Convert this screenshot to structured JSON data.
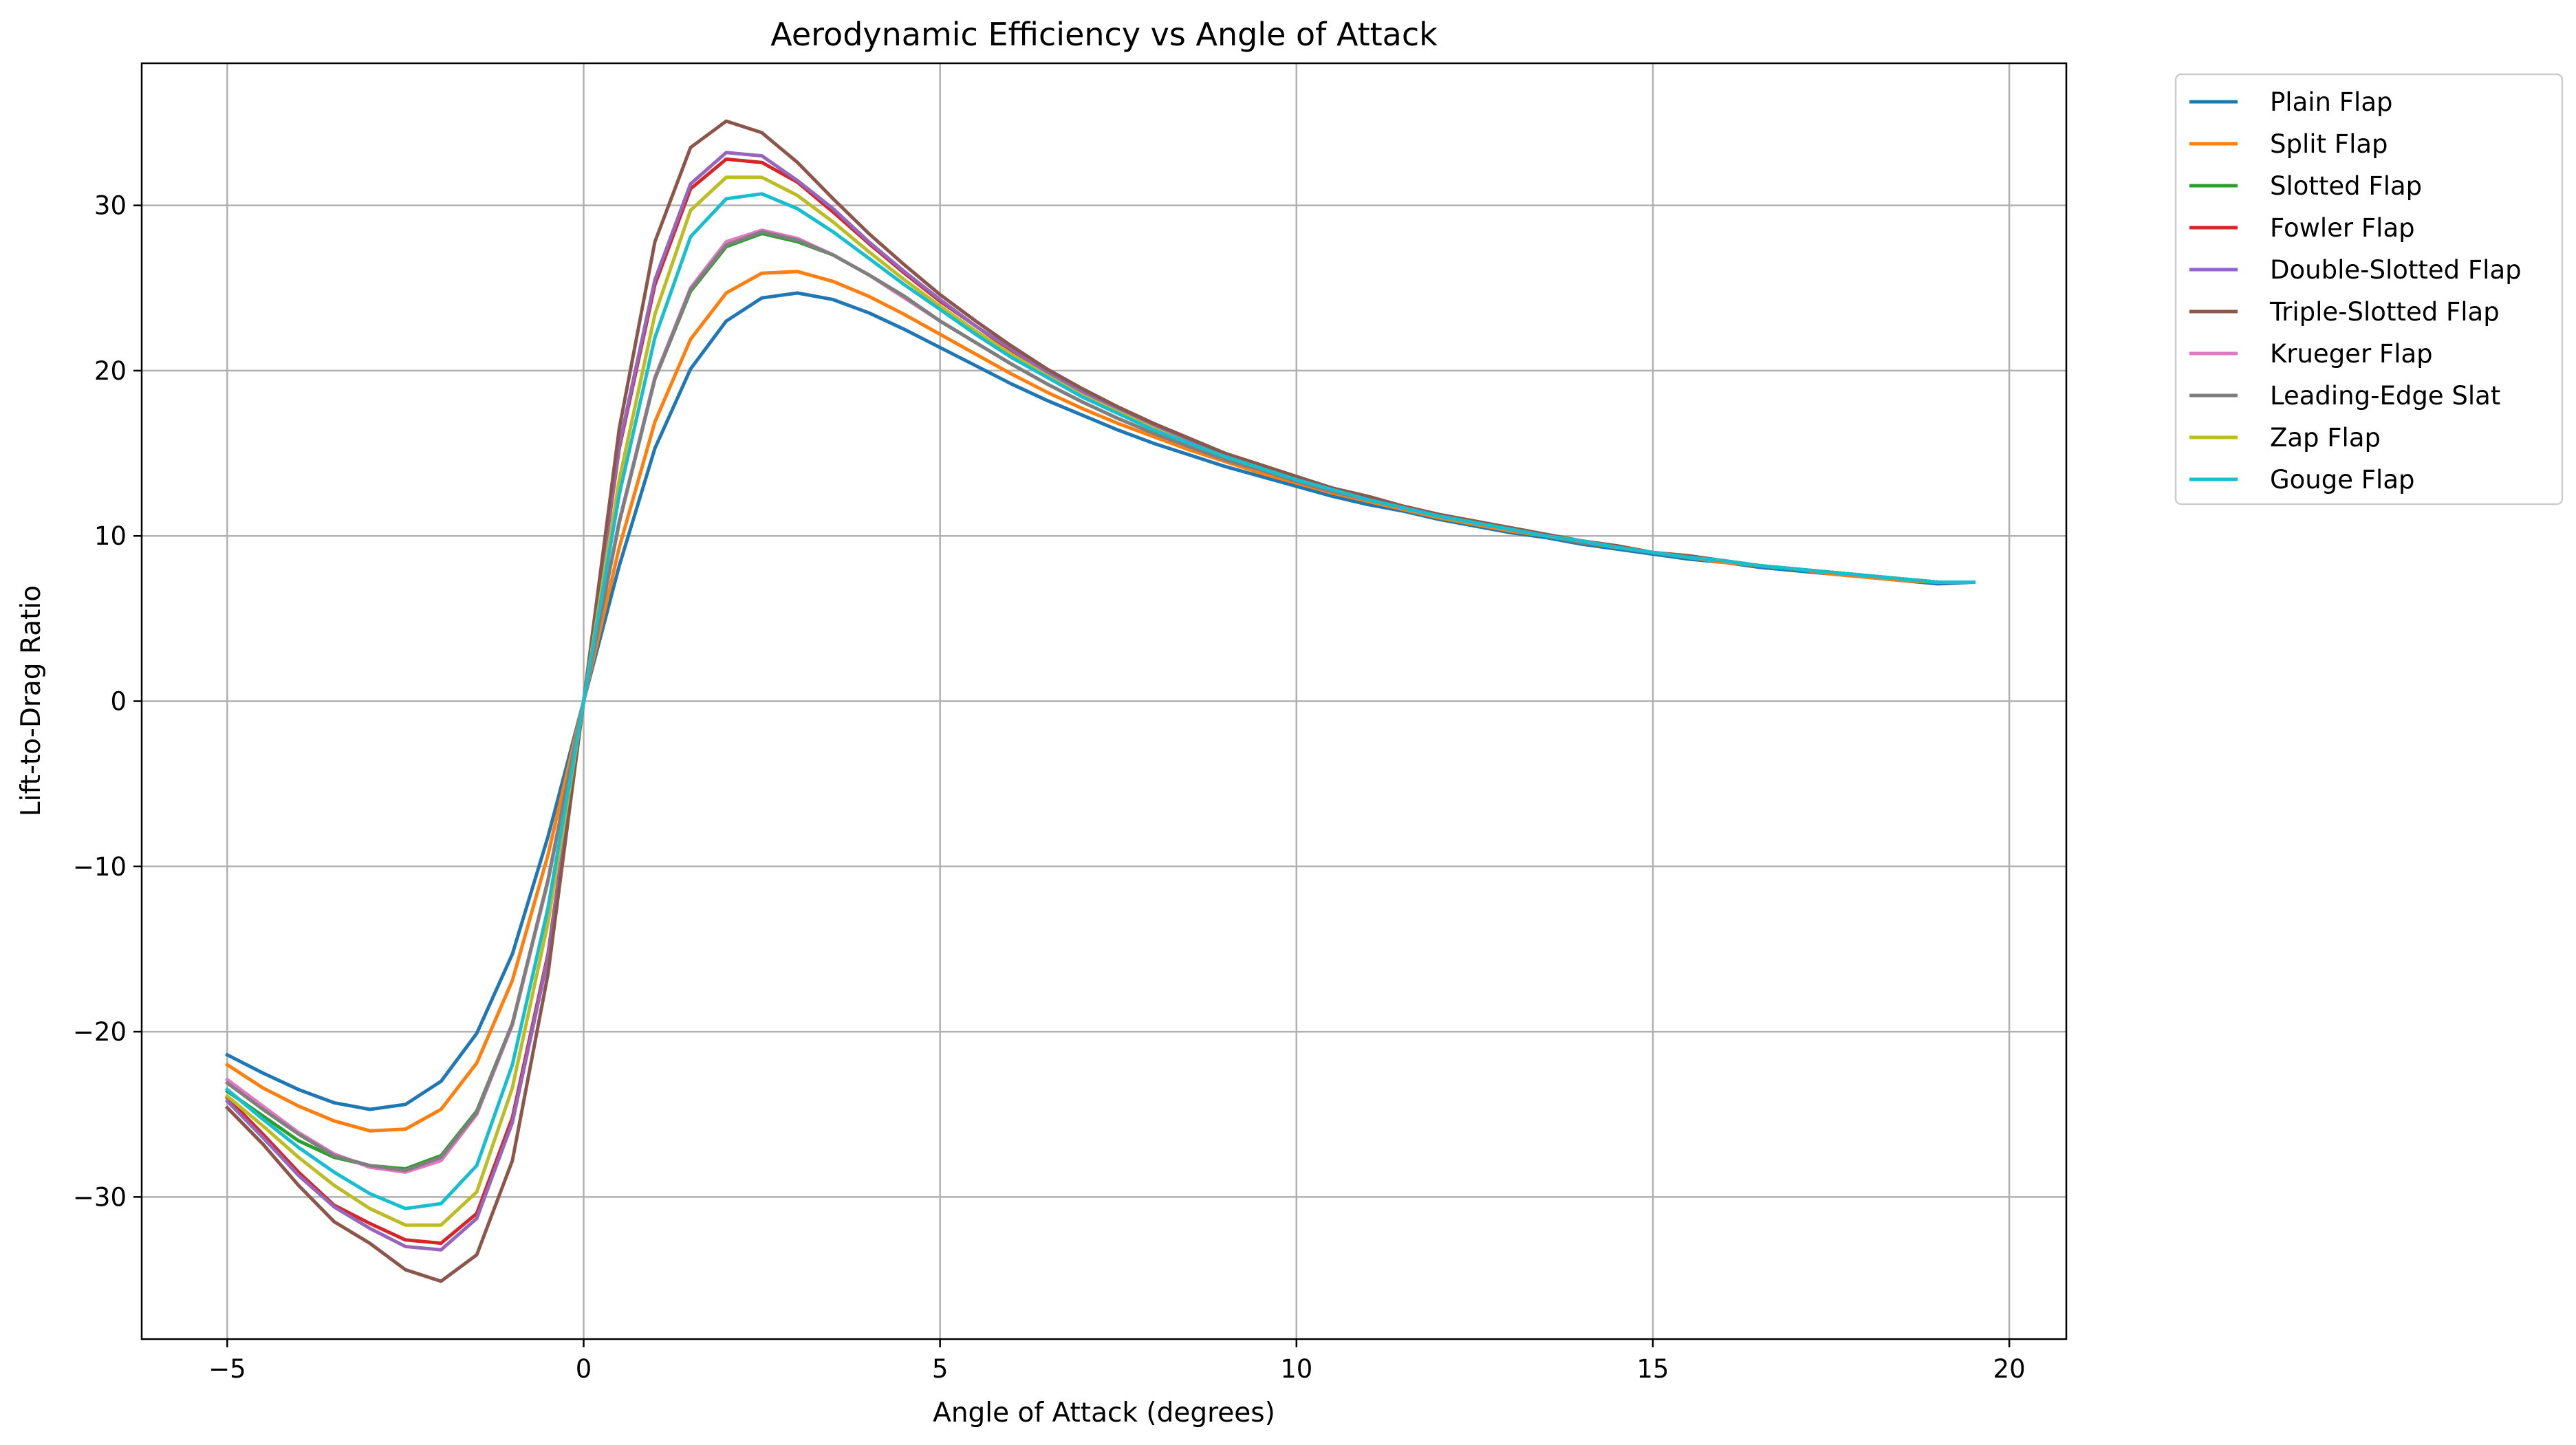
{
  "chart_data": {
    "type": "line",
    "title": "Aerodynamic Efficiency vs Angle of Attack",
    "xlabel": "Angle of Attack (degrees)",
    "ylabel": "Lift-to-Drag Ratio",
    "xlim": [
      -6.2,
      20.8
    ],
    "ylim": [
      -38.6,
      38.6
    ],
    "xticks": [
      -5,
      0,
      5,
      10,
      15,
      20
    ],
    "xtick_labels": [
      "−5",
      "0",
      "5",
      "10",
      "15",
      "20"
    ],
    "yticks": [
      -30,
      -20,
      -10,
      0,
      10,
      20,
      30
    ],
    "ytick_labels": [
      "−30",
      "−20",
      "−10",
      "0",
      "10",
      "20",
      "30"
    ],
    "grid": true,
    "legend_position": "outside-top-right",
    "x": [
      -5.0,
      -4.5,
      -4.0,
      -3.5,
      -3.0,
      -2.5,
      -2.0,
      -1.5,
      -1.0,
      -0.5,
      0.0,
      0.5,
      1.0,
      1.5,
      2.0,
      2.5,
      3.0,
      3.5,
      4.0,
      4.5,
      5.0,
      5.5,
      6.0,
      6.5,
      7.0,
      7.5,
      8.0,
      8.5,
      9.0,
      9.5,
      10.0,
      10.5,
      11.0,
      11.5,
      12.0,
      12.5,
      13.0,
      13.5,
      14.0,
      14.5,
      15.0,
      15.5,
      16.0,
      16.5,
      17.0,
      17.5,
      18.0,
      18.5,
      19.0,
      19.5
    ],
    "series": [
      {
        "name": "Plain Flap",
        "color": "#1f77b4",
        "values": [
          -21.4,
          -22.5,
          -23.5,
          -24.3,
          -24.7,
          -24.4,
          -23.0,
          -20.1,
          -15.3,
          -8.2,
          0.0,
          8.2,
          15.3,
          20.1,
          23.0,
          24.4,
          24.7,
          24.3,
          23.5,
          22.5,
          21.4,
          20.3,
          19.2,
          18.2,
          17.3,
          16.4,
          15.6,
          14.9,
          14.2,
          13.6,
          13.0,
          12.4,
          11.9,
          11.5,
          11.0,
          10.6,
          10.2,
          9.9,
          9.5,
          9.2,
          8.9,
          8.6,
          8.4,
          8.1,
          7.9,
          7.7,
          7.5,
          7.3,
          7.1,
          7.2
        ]
      },
      {
        "name": "Split Flap",
        "color": "#ff7f0e",
        "values": [
          -22.0,
          -23.4,
          -24.5,
          -25.4,
          -26.0,
          -25.9,
          -24.7,
          -21.9,
          -16.9,
          -9.3,
          0.0,
          9.3,
          16.9,
          21.9,
          24.7,
          25.9,
          26.0,
          25.4,
          24.5,
          23.4,
          22.2,
          21.0,
          19.8,
          18.7,
          17.7,
          16.8,
          16.0,
          15.2,
          14.5,
          13.8,
          13.2,
          12.6,
          12.1,
          11.6,
          11.1,
          10.7,
          10.3,
          10.0,
          9.6,
          9.3,
          9.0,
          8.7,
          8.4,
          8.2,
          8.0,
          7.7,
          7.5,
          7.3,
          7.2,
          7.2
        ]
      },
      {
        "name": "Slotted Flap",
        "color": "#2ca02c",
        "values": [
          -23.6,
          -25.1,
          -26.6,
          -27.6,
          -28.1,
          -28.3,
          -27.5,
          -24.8,
          -19.5,
          -10.9,
          0.0,
          10.9,
          19.5,
          24.8,
          27.5,
          28.3,
          27.8,
          27.0,
          25.8,
          24.5,
          23.0,
          21.7,
          20.4,
          19.2,
          18.1,
          17.1,
          16.2,
          15.4,
          14.6,
          14.0,
          13.3,
          12.7,
          12.2,
          11.7,
          11.2,
          10.8,
          10.4,
          10.0,
          9.6,
          9.3,
          9.0,
          8.7,
          8.5,
          8.2,
          8.0,
          7.8,
          7.6,
          7.4,
          7.2,
          7.2
        ]
      },
      {
        "name": "Fowler Flap",
        "color": "#d62728",
        "values": [
          -24.0,
          -26.2,
          -28.5,
          -30.5,
          -31.6,
          -32.6,
          -32.8,
          -31.0,
          -25.2,
          -15.3,
          0.0,
          15.3,
          25.2,
          31.0,
          32.8,
          32.6,
          31.4,
          29.6,
          27.7,
          25.9,
          24.2,
          22.7,
          21.2,
          19.9,
          18.7,
          17.6,
          16.6,
          15.7,
          14.9,
          14.2,
          13.5,
          12.9,
          12.3,
          11.8,
          11.3,
          10.8,
          10.4,
          10.0,
          9.7,
          9.3,
          9.0,
          8.7,
          8.5,
          8.2,
          8.0,
          7.8,
          7.6,
          7.4,
          7.2,
          7.2
        ]
      },
      {
        "name": "Double-Slotted Flap",
        "color": "#9467bd",
        "values": [
          -24.2,
          -26.4,
          -28.7,
          -30.6,
          -31.9,
          -33.0,
          -33.2,
          -31.3,
          -25.5,
          -15.5,
          0.0,
          15.5,
          25.5,
          31.3,
          33.2,
          33.0,
          31.5,
          29.8,
          27.8,
          26.0,
          24.3,
          22.7,
          21.3,
          19.9,
          18.7,
          17.6,
          16.6,
          15.7,
          14.9,
          14.2,
          13.5,
          12.9,
          12.3,
          11.8,
          11.3,
          10.8,
          10.4,
          10.0,
          9.7,
          9.3,
          9.0,
          8.7,
          8.5,
          8.2,
          8.0,
          7.8,
          7.6,
          7.4,
          7.2,
          7.2
        ]
      },
      {
        "name": "Triple-Slotted Flap",
        "color": "#8c564b",
        "values": [
          -24.6,
          -26.8,
          -29.3,
          -31.5,
          -32.8,
          -34.4,
          -35.1,
          -33.5,
          -27.8,
          -16.5,
          0.0,
          16.5,
          27.8,
          33.5,
          35.1,
          34.4,
          32.6,
          30.4,
          28.3,
          26.4,
          24.6,
          23.0,
          21.5,
          20.1,
          18.9,
          17.8,
          16.8,
          15.9,
          15.0,
          14.3,
          13.6,
          12.9,
          12.4,
          11.8,
          11.3,
          10.9,
          10.5,
          10.1,
          9.7,
          9.4,
          9.0,
          8.8,
          8.5,
          8.2,
          8.0,
          7.8,
          7.6,
          7.4,
          7.2,
          7.2
        ]
      },
      {
        "name": "Krueger Flap",
        "color": "#e377c2",
        "values": [
          -22.9,
          -24.5,
          -26.1,
          -27.4,
          -28.2,
          -28.5,
          -27.8,
          -25.0,
          -19.6,
          -10.9,
          0.0,
          10.9,
          19.6,
          25.0,
          27.8,
          28.5,
          28.0,
          27.0,
          25.8,
          24.4,
          23.0,
          21.7,
          20.4,
          19.2,
          18.1,
          17.1,
          16.2,
          15.4,
          14.6,
          14.0,
          13.3,
          12.7,
          12.2,
          11.7,
          11.2,
          10.8,
          10.4,
          10.0,
          9.6,
          9.3,
          9.0,
          8.7,
          8.5,
          8.2,
          8.0,
          7.8,
          7.6,
          7.4,
          7.2,
          7.2
        ]
      },
      {
        "name": "Leading-Edge Slat",
        "color": "#7f7f7f",
        "values": [
          -23.1,
          -24.7,
          -26.2,
          -27.5,
          -28.1,
          -28.4,
          -27.6,
          -24.9,
          -19.5,
          -10.8,
          0.0,
          10.8,
          19.5,
          24.9,
          27.6,
          28.4,
          27.9,
          27.0,
          25.8,
          24.5,
          23.0,
          21.7,
          20.4,
          19.2,
          18.1,
          17.1,
          16.2,
          15.4,
          14.6,
          14.0,
          13.3,
          12.7,
          12.2,
          11.7,
          11.2,
          10.8,
          10.4,
          10.0,
          9.6,
          9.3,
          9.0,
          8.7,
          8.5,
          8.2,
          8.0,
          7.8,
          7.6,
          7.4,
          7.2,
          7.2
        ]
      },
      {
        "name": "Zap Flap",
        "color": "#bcbd22",
        "values": [
          -23.9,
          -25.7,
          -27.6,
          -29.3,
          -30.7,
          -31.7,
          -31.7,
          -29.7,
          -23.4,
          -13.4,
          0.0,
          13.4,
          23.4,
          29.7,
          31.7,
          31.7,
          30.6,
          29.0,
          27.2,
          25.5,
          23.9,
          22.4,
          21.0,
          19.7,
          18.5,
          17.5,
          16.5,
          15.6,
          14.8,
          14.1,
          13.4,
          12.8,
          12.2,
          11.7,
          11.2,
          10.8,
          10.4,
          10.0,
          9.7,
          9.3,
          9.0,
          8.7,
          8.5,
          8.2,
          8.0,
          7.8,
          7.6,
          7.4,
          7.2,
          7.2
        ]
      },
      {
        "name": "Gouge Flap",
        "color": "#17becf",
        "values": [
          -23.5,
          -25.3,
          -27.0,
          -28.5,
          -29.8,
          -30.7,
          -30.4,
          -28.1,
          -22.0,
          -12.5,
          0.0,
          12.5,
          22.0,
          28.1,
          30.4,
          30.7,
          29.8,
          28.4,
          26.8,
          25.2,
          23.7,
          22.2,
          20.8,
          19.6,
          18.4,
          17.4,
          16.4,
          15.6,
          14.8,
          14.1,
          13.4,
          12.8,
          12.2,
          11.7,
          11.2,
          10.8,
          10.4,
          10.0,
          9.7,
          9.3,
          9.0,
          8.7,
          8.5,
          8.2,
          8.0,
          7.8,
          7.6,
          7.4,
          7.2,
          7.2
        ]
      }
    ]
  }
}
